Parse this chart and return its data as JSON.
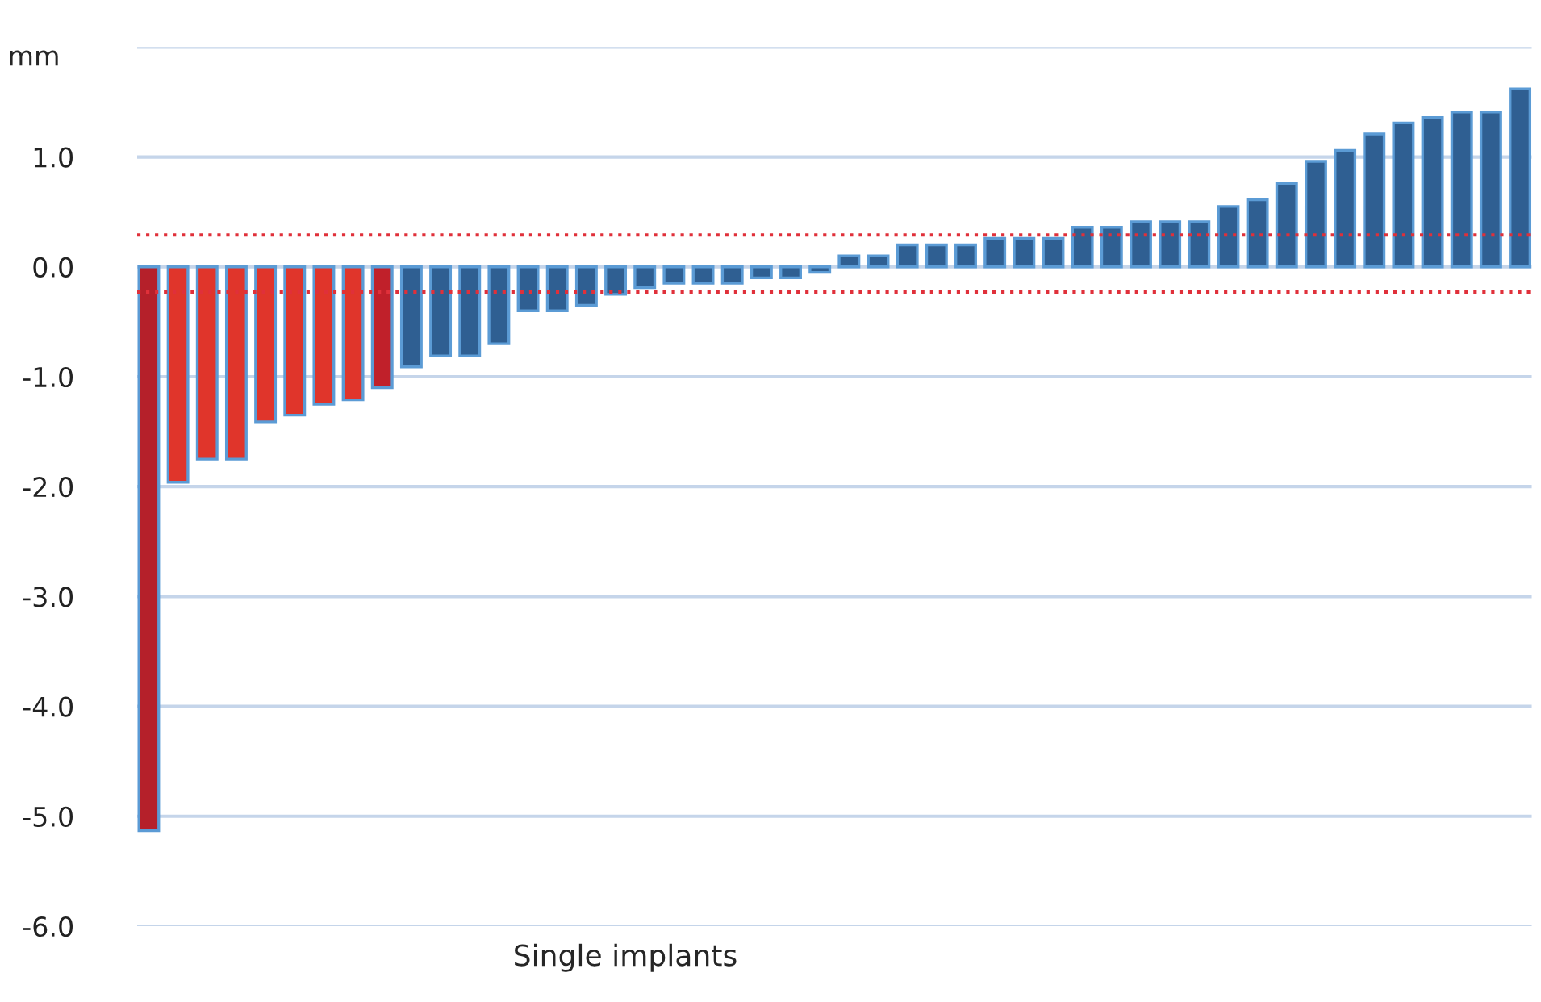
{
  "chart_data": {
    "type": "bar",
    "xlabel": "Single implants",
    "ylabel": "mm",
    "categories": [
      null,
      null,
      null,
      null,
      null,
      null,
      null,
      null,
      null,
      null,
      null,
      null,
      null,
      null,
      null,
      null,
      null,
      null,
      null,
      null,
      null,
      null,
      null,
      null,
      null,
      null,
      null,
      null,
      null,
      null,
      null,
      null,
      null,
      null,
      null,
      null,
      null,
      null,
      null,
      null,
      null,
      null,
      null,
      null,
      null,
      null,
      null,
      null
    ],
    "values": [
      -5.13,
      -1.96,
      -1.75,
      -1.75,
      -1.41,
      -1.35,
      -1.25,
      -1.21,
      -1.1,
      -0.91,
      -0.81,
      -0.81,
      -0.7,
      -0.4,
      -0.4,
      -0.35,
      -0.25,
      -0.19,
      -0.15,
      -0.15,
      -0.15,
      -0.1,
      -0.1,
      -0.05,
      0.1,
      0.1,
      0.2,
      0.2,
      0.2,
      0.26,
      0.26,
      0.26,
      0.36,
      0.36,
      0.41,
      0.41,
      0.41,
      0.55,
      0.61,
      0.76,
      0.96,
      1.06,
      1.21,
      1.31,
      1.36,
      1.41,
      1.41,
      1.62
    ],
    "colors": [
      "#b5202a",
      "#e0352b",
      "#e0352b",
      "#e0352b",
      "#e0352b",
      "#e0352b",
      "#e0352b",
      "#e0352b",
      "#c0202a",
      "#2f5f92",
      "#2f5f92",
      "#2f5f92",
      "#2f5f92",
      "#2f5f92",
      "#2f5f92",
      "#2f5f92",
      "#2f5f92",
      "#2f5f92",
      "#2f5f92",
      "#2f5f92",
      "#2f5f92",
      "#2f5f92",
      "#2f5f92",
      "#2f5f92",
      "#2f5f92",
      "#2f5f92",
      "#2f5f92",
      "#2f5f92",
      "#2f5f92",
      "#2f5f92",
      "#2f5f92",
      "#2f5f92",
      "#2f5f92",
      "#2f5f92",
      "#2f5f92",
      "#2f5f92",
      "#2f5f92",
      "#2f5f92",
      "#2f5f92",
      "#2f5f92",
      "#2f5f92",
      "#2f5f92",
      "#2f5f92",
      "#2f5f92",
      "#2f5f92",
      "#2f5f92",
      "#2f5f92",
      "#2f5f92"
    ],
    "ylim": [
      -6,
      2
    ],
    "yticks": [
      {
        "value": -6,
        "label": "-6.0"
      },
      {
        "value": -5,
        "label": "-5.0"
      },
      {
        "value": -4,
        "label": "-4.0"
      },
      {
        "value": -3,
        "label": "-3.0"
      },
      {
        "value": -2,
        "label": "-2.0"
      },
      {
        "value": -1,
        "label": "-1.0"
      },
      {
        "value": 0,
        "label": "0.0"
      },
      {
        "value": 1,
        "label": "1.0"
      },
      {
        "value": 2,
        "label": null
      }
    ],
    "grid": "y",
    "ref_lines": [
      {
        "axis": "y",
        "value": 0.29,
        "color": "#e0303a",
        "line_style": "dotted"
      },
      {
        "axis": "y",
        "value": -0.23,
        "color": "#e0303a",
        "line_style": "dotted"
      }
    ]
  }
}
